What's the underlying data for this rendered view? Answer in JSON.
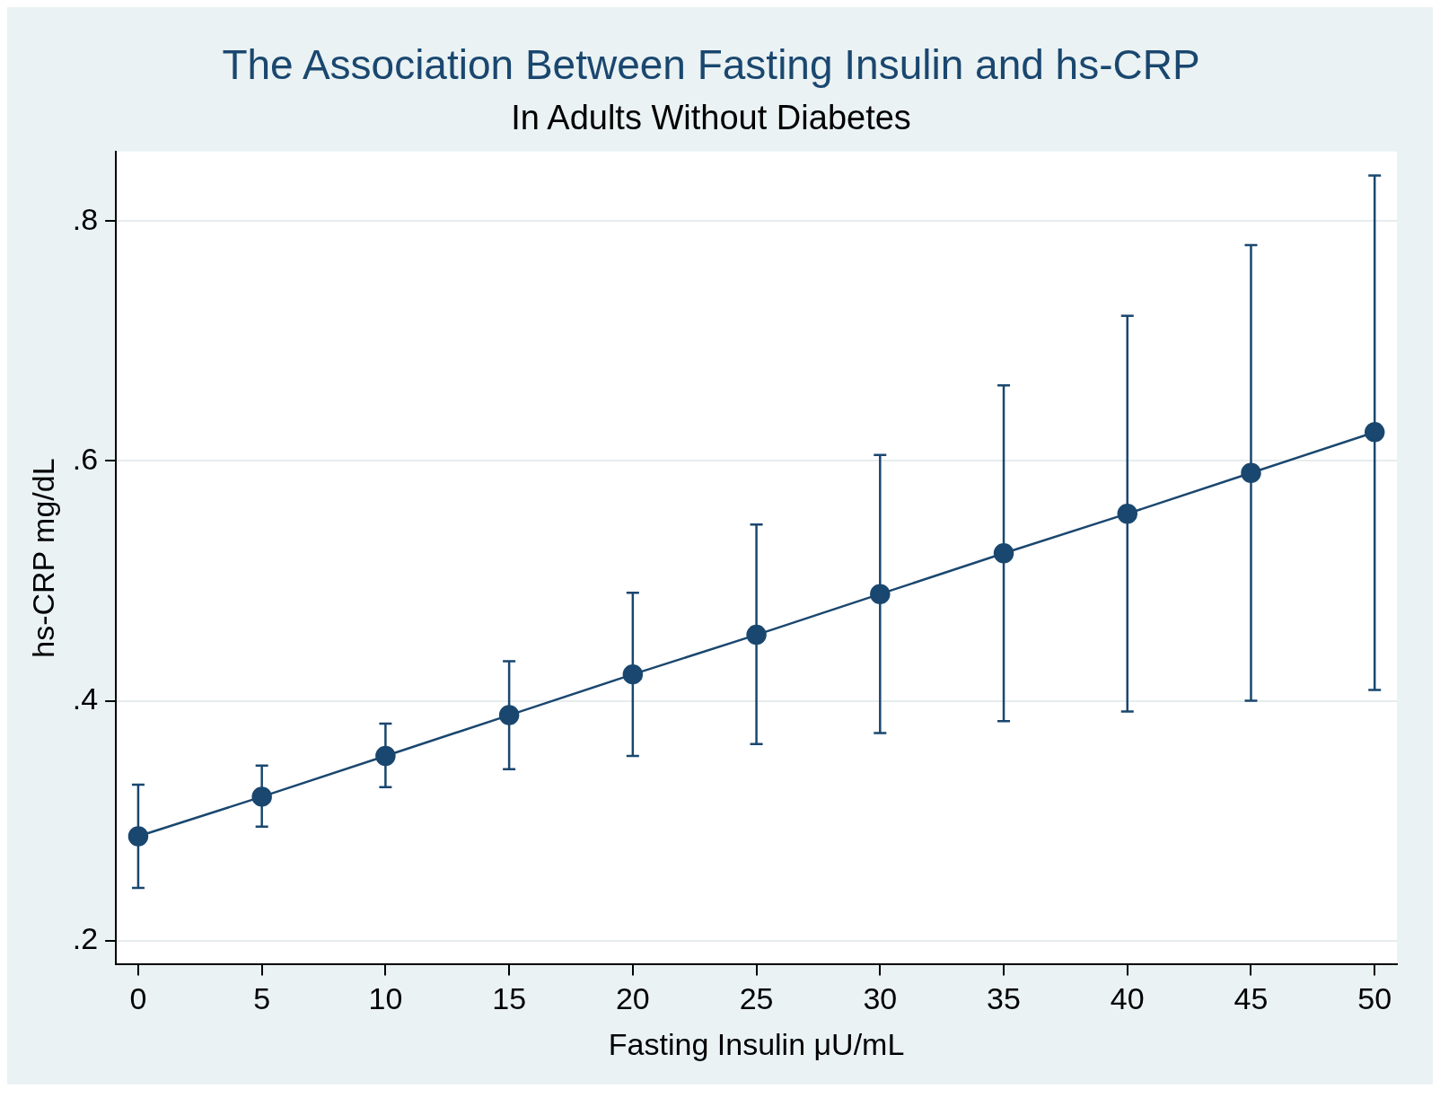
{
  "chart_data": {
    "type": "line",
    "title": "The Association Between Fasting Insulin and hs-CRP",
    "subtitle": "In Adults Without Diabetes",
    "xlabel": "Fasting Insulin μU/mL",
    "ylabel": "hs-CRP mg/dL",
    "x": [
      0,
      5,
      10,
      15,
      20,
      25,
      30,
      35,
      40,
      45,
      50
    ],
    "series": [
      {
        "color": "#1a476f",
        "values": [
          0.287,
          0.32,
          0.354,
          0.388,
          0.422,
          0.455,
          0.489,
          0.523,
          0.556,
          0.59,
          0.624
        ],
        "errors": [
          [
            0.244,
            0.33
          ],
          [
            0.295,
            0.346
          ],
          [
            0.328,
            0.381
          ],
          [
            0.343,
            0.433
          ],
          [
            0.354,
            0.49
          ],
          [
            0.364,
            0.547
          ],
          [
            0.373,
            0.605
          ],
          [
            0.383,
            0.663
          ],
          [
            0.391,
            0.721
          ],
          [
            0.4,
            0.78
          ],
          [
            0.409,
            0.838
          ]
        ]
      }
    ],
    "xlim": [
      -0.9,
      50.9
    ],
    "xticks": [
      0,
      5,
      10,
      15,
      20,
      25,
      30,
      35,
      40,
      45,
      50
    ],
    "ylim": [
      0.18,
      0.858
    ],
    "yticks": [
      {
        "value": 0.2,
        "label": ".2"
      },
      {
        "value": 0.4,
        "label": ".4"
      },
      {
        "value": 0.6,
        "label": ".6"
      },
      {
        "value": 0.8,
        "label": ".8"
      }
    ],
    "grid": "y",
    "marker": "circle",
    "line_style": "solid",
    "legend": false
  }
}
